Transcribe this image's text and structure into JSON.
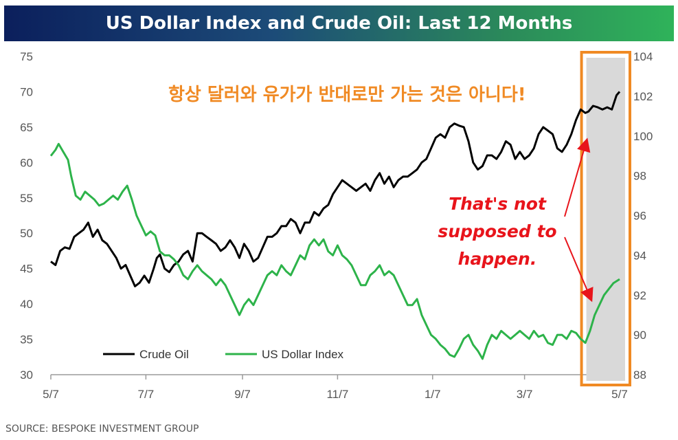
{
  "banner": {
    "title": "US Dollar Index and Crude Oil: Last 12 Months"
  },
  "annotation_korean": "항상 달러와 유가가 반대로만 가는 것은 아니다!",
  "annotation_red": [
    "That's not",
    "supposed to",
    "happen."
  ],
  "source": "SOURCE: BESPOKE INVESTMENT GROUP",
  "colors": {
    "crude": "#000000",
    "dollar": "#2db34a",
    "highlight": "#d9d9d9",
    "box": "#f08a24",
    "korean": "#f08a24",
    "red_text": "#e8141b"
  },
  "chart_data": {
    "type": "line",
    "x_tick_labels": [
      "5/7",
      "7/7",
      "9/7",
      "11/7",
      "1/7",
      "3/7",
      "5/7"
    ],
    "y_left": {
      "ticks": [
        30,
        35,
        40,
        45,
        50,
        55,
        60,
        65,
        70,
        75
      ],
      "range": [
        30,
        75
      ]
    },
    "y_right": {
      "ticks": [
        88,
        90,
        92,
        94,
        96,
        98,
        100,
        102,
        104
      ],
      "range": [
        88,
        104
      ]
    },
    "x_range": [
      0,
      365
    ],
    "x_tick_positions": [
      0,
      61,
      123,
      184,
      245,
      304,
      365
    ],
    "highlight_range": [
      341,
      365
    ],
    "series": [
      {
        "name": "Crude Oil",
        "axis": "left",
        "points": [
          [
            0,
            46
          ],
          [
            3,
            45.5
          ],
          [
            6,
            47.5
          ],
          [
            9,
            48
          ],
          [
            12,
            47.8
          ],
          [
            15,
            49.5
          ],
          [
            18,
            50
          ],
          [
            21,
            50.5
          ],
          [
            24,
            51.5
          ],
          [
            27,
            49.5
          ],
          [
            30,
            50.5
          ],
          [
            33,
            49
          ],
          [
            36,
            48.5
          ],
          [
            39,
            47.5
          ],
          [
            42,
            46.5
          ],
          [
            45,
            45
          ],
          [
            48,
            45.5
          ],
          [
            51,
            44
          ],
          [
            54,
            42.5
          ],
          [
            57,
            43
          ],
          [
            60,
            44
          ],
          [
            63,
            43
          ],
          [
            66,
            45
          ],
          [
            68,
            46.5
          ],
          [
            70,
            47
          ],
          [
            73,
            45
          ],
          [
            76,
            44.5
          ],
          [
            79,
            45.5
          ],
          [
            82,
            46
          ],
          [
            85,
            47
          ],
          [
            88,
            47.5
          ],
          [
            91,
            46
          ],
          [
            94,
            50
          ],
          [
            97,
            50
          ],
          [
            100,
            49.5
          ],
          [
            103,
            49
          ],
          [
            106,
            48.5
          ],
          [
            109,
            47.5
          ],
          [
            112,
            48
          ],
          [
            115,
            49
          ],
          [
            118,
            48
          ],
          [
            121,
            46.5
          ],
          [
            124,
            48.5
          ],
          [
            127,
            47.5
          ],
          [
            130,
            46
          ],
          [
            133,
            46.5
          ],
          [
            136,
            48
          ],
          [
            139,
            49.5
          ],
          [
            142,
            49.5
          ],
          [
            145,
            50
          ],
          [
            148,
            51
          ],
          [
            151,
            51
          ],
          [
            154,
            52
          ],
          [
            157,
            51.5
          ],
          [
            160,
            50
          ],
          [
            163,
            51.5
          ],
          [
            166,
            51.5
          ],
          [
            169,
            53
          ],
          [
            172,
            52.5
          ],
          [
            175,
            53.5
          ],
          [
            178,
            54
          ],
          [
            181,
            55.5
          ],
          [
            184,
            56.5
          ],
          [
            187,
            57.5
          ],
          [
            190,
            57
          ],
          [
            193,
            56.5
          ],
          [
            196,
            56
          ],
          [
            199,
            56.5
          ],
          [
            202,
            57
          ],
          [
            205,
            56
          ],
          [
            208,
            57.5
          ],
          [
            211,
            58.5
          ],
          [
            214,
            57
          ],
          [
            217,
            58
          ],
          [
            220,
            56.5
          ],
          [
            223,
            57.5
          ],
          [
            226,
            58
          ],
          [
            229,
            58
          ],
          [
            232,
            58.5
          ],
          [
            235,
            59
          ],
          [
            238,
            60
          ],
          [
            241,
            60.5
          ],
          [
            244,
            62
          ],
          [
            247,
            63.5
          ],
          [
            250,
            64
          ],
          [
            253,
            63.5
          ],
          [
            256,
            65
          ],
          [
            259,
            65.5
          ],
          [
            262,
            65.2
          ],
          [
            265,
            65
          ],
          [
            268,
            63
          ],
          [
            271,
            60
          ],
          [
            274,
            59
          ],
          [
            277,
            59.5
          ],
          [
            280,
            61
          ],
          [
            283,
            61
          ],
          [
            286,
            60.5
          ],
          [
            289,
            61.5
          ],
          [
            292,
            63
          ],
          [
            295,
            62.5
          ],
          [
            298,
            60.5
          ],
          [
            301,
            61.5
          ],
          [
            304,
            60.5
          ],
          [
            307,
            61
          ],
          [
            310,
            62
          ],
          [
            313,
            64
          ],
          [
            316,
            65
          ],
          [
            319,
            64.5
          ],
          [
            322,
            64
          ],
          [
            325,
            62
          ],
          [
            328,
            61.5
          ],
          [
            331,
            62.5
          ],
          [
            334,
            64
          ],
          [
            337,
            66
          ],
          [
            340,
            67.5
          ],
          [
            343,
            67
          ],
          [
            345,
            67.2
          ],
          [
            348,
            68
          ],
          [
            351,
            67.8
          ],
          [
            354,
            67.5
          ],
          [
            357,
            67.8
          ],
          [
            360,
            67.5
          ],
          [
            363,
            69.5
          ],
          [
            365,
            70
          ]
        ]
      },
      {
        "name": "US Dollar Index",
        "axis": "right",
        "points": [
          [
            0,
            99
          ],
          [
            3,
            99.3
          ],
          [
            5,
            99.6
          ],
          [
            8,
            99.2
          ],
          [
            11,
            98.8
          ],
          [
            13,
            98
          ],
          [
            16,
            97
          ],
          [
            19,
            96.8
          ],
          [
            22,
            97.2
          ],
          [
            25,
            97
          ],
          [
            28,
            96.8
          ],
          [
            31,
            96.5
          ],
          [
            34,
            96.6
          ],
          [
            37,
            96.8
          ],
          [
            40,
            97
          ],
          [
            43,
            96.8
          ],
          [
            46,
            97.2
          ],
          [
            49,
            97.5
          ],
          [
            52,
            96.8
          ],
          [
            55,
            96
          ],
          [
            58,
            95.5
          ],
          [
            61,
            95
          ],
          [
            64,
            95.2
          ],
          [
            67,
            95
          ],
          [
            70,
            94.2
          ],
          [
            73,
            94
          ],
          [
            76,
            94
          ],
          [
            79,
            93.8
          ],
          [
            82,
            93.5
          ],
          [
            85,
            93
          ],
          [
            88,
            92.8
          ],
          [
            91,
            93.2
          ],
          [
            94,
            93.5
          ],
          [
            97,
            93.2
          ],
          [
            100,
            93
          ],
          [
            103,
            92.8
          ],
          [
            106,
            92.5
          ],
          [
            109,
            92.8
          ],
          [
            112,
            92.5
          ],
          [
            115,
            92
          ],
          [
            118,
            91.5
          ],
          [
            121,
            91
          ],
          [
            124,
            91.5
          ],
          [
            127,
            91.8
          ],
          [
            130,
            91.5
          ],
          [
            133,
            92
          ],
          [
            136,
            92.5
          ],
          [
            139,
            93
          ],
          [
            142,
            93.2
          ],
          [
            145,
            93
          ],
          [
            148,
            93.5
          ],
          [
            151,
            93.2
          ],
          [
            154,
            93
          ],
          [
            157,
            93.5
          ],
          [
            160,
            94
          ],
          [
            163,
            93.8
          ],
          [
            166,
            94.5
          ],
          [
            169,
            94.8
          ],
          [
            172,
            94.5
          ],
          [
            175,
            94.8
          ],
          [
            178,
            94.2
          ],
          [
            181,
            94
          ],
          [
            184,
            94.5
          ],
          [
            187,
            94
          ],
          [
            190,
            93.8
          ],
          [
            193,
            93.5
          ],
          [
            196,
            93
          ],
          [
            199,
            92.5
          ],
          [
            202,
            92.5
          ],
          [
            205,
            93
          ],
          [
            208,
            93.2
          ],
          [
            211,
            93.5
          ],
          [
            214,
            93
          ],
          [
            217,
            93.2
          ],
          [
            220,
            93
          ],
          [
            223,
            92.5
          ],
          [
            226,
            92
          ],
          [
            229,
            91.5
          ],
          [
            232,
            91.5
          ],
          [
            235,
            91.8
          ],
          [
            238,
            91
          ],
          [
            241,
            90.5
          ],
          [
            244,
            90
          ],
          [
            247,
            89.8
          ],
          [
            250,
            89.5
          ],
          [
            253,
            89.3
          ],
          [
            256,
            89
          ],
          [
            259,
            88.9
          ],
          [
            262,
            89.3
          ],
          [
            265,
            89.8
          ],
          [
            268,
            90
          ],
          [
            271,
            89.5
          ],
          [
            274,
            89.2
          ],
          [
            277,
            88.8
          ],
          [
            280,
            89.5
          ],
          [
            283,
            90
          ],
          [
            286,
            89.8
          ],
          [
            289,
            90.2
          ],
          [
            292,
            90
          ],
          [
            295,
            89.8
          ],
          [
            298,
            90
          ],
          [
            301,
            90.2
          ],
          [
            304,
            90
          ],
          [
            307,
            89.8
          ],
          [
            310,
            90.2
          ],
          [
            313,
            89.9
          ],
          [
            316,
            90
          ],
          [
            319,
            89.6
          ],
          [
            322,
            89.5
          ],
          [
            325,
            90
          ],
          [
            328,
            90
          ],
          [
            331,
            89.8
          ],
          [
            334,
            90.2
          ],
          [
            337,
            90.1
          ],
          [
            340,
            89.8
          ],
          [
            343,
            89.6
          ],
          [
            346,
            90.2
          ],
          [
            349,
            91
          ],
          [
            352,
            91.5
          ],
          [
            355,
            92
          ],
          [
            358,
            92.3
          ],
          [
            361,
            92.6
          ],
          [
            365,
            92.8
          ]
        ]
      }
    ]
  }
}
